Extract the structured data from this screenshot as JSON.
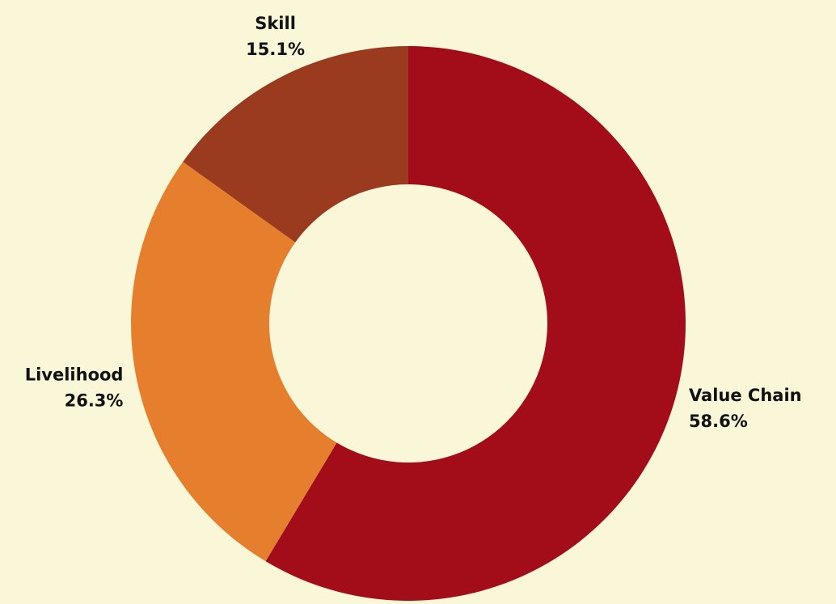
{
  "chart_data": {
    "type": "donut",
    "categories": [
      "Value Chain",
      "Livelihood",
      "Skill"
    ],
    "values": [
      58.6,
      26.3,
      15.1
    ],
    "value_labels": [
      "58.6%",
      "26.3%",
      "15.1%"
    ],
    "colors": [
      "#a30d1a",
      "#e57f2e",
      "#9a3a1e"
    ]
  }
}
